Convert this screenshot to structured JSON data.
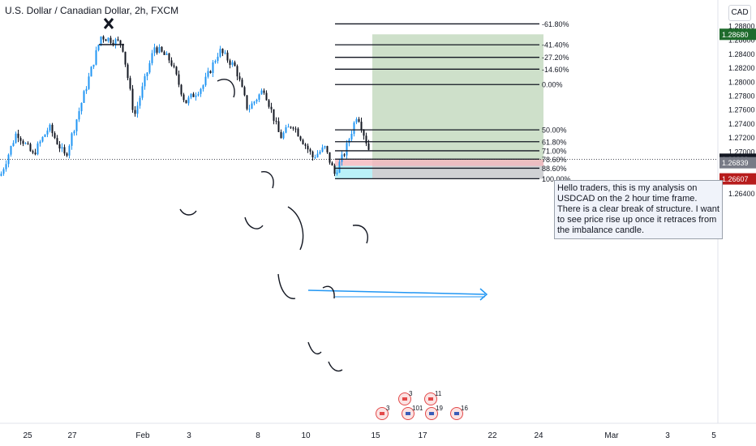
{
  "header": {
    "symbol_title": "U.S. Dollar / Canadian Dollar, 2h, FXCM",
    "currency_button": "CAD"
  },
  "colors": {
    "bull": "#2196f3",
    "bear": "#131722",
    "target_zone": "#a5c79f",
    "stop_zone": "#c4c6c9",
    "imbalance": "#b2f0f7",
    "imbalance_red": "#f4b7bd",
    "price_tag": "#131722",
    "tag_green": "#1f6b2c",
    "tag_red": "#b71c1c",
    "tag_gray": "#787b86"
  },
  "note": {
    "text": "Hello traders, this is my analysis on USDCAD on the 2 hour time frame.\nThere is a clear break of structure. I want to see price rise up once it retraces from the imbalance candle."
  },
  "chart_data": {
    "type": "candlestick",
    "symbol": "USDCAD",
    "timeframe": "2h",
    "y_axis": {
      "ticks": [
        "1.28800",
        "1.28600",
        "1.28400",
        "1.28200",
        "1.28000",
        "1.27800",
        "1.27600",
        "1.27400",
        "1.27200",
        "1.27000",
        "1.26800",
        "1.26600",
        "1.26400"
      ]
    },
    "x_axis": {
      "ticks": [
        "25",
        "27",
        "Feb",
        "3",
        "8",
        "10",
        "15",
        "17",
        "22",
        "24",
        "Mar",
        "3",
        "5"
      ]
    },
    "price_tags": [
      {
        "label": "1.28680",
        "value": 1.2868,
        "color": "#1f6b2c"
      },
      {
        "label": "1.26889",
        "value": 1.26889,
        "color": "#131722"
      },
      {
        "label": "1.26839",
        "value": 1.26839,
        "color": "#787b86"
      },
      {
        "label": "1.26607",
        "value": 1.26607,
        "color": "#b71c1c"
      }
    ],
    "fib_levels": [
      {
        "label": "-61.80%",
        "value": 1.2883
      },
      {
        "label": "-41.40%",
        "value": 1.2853
      },
      {
        "label": "-27.20%",
        "value": 1.2835
      },
      {
        "label": "-14.60%",
        "value": 1.2818
      },
      {
        "label": "0.00%",
        "value": 1.2796
      },
      {
        "label": "50.00%",
        "value": 1.2731
      },
      {
        "label": "61.80%",
        "value": 1.2714
      },
      {
        "label": "71.00%",
        "value": 1.2701
      },
      {
        "label": "78.60%",
        "value": 1.2689
      },
      {
        "label": "88.60%",
        "value": 1.2676
      },
      {
        "label": "100.00%",
        "value": 1.2661
      }
    ],
    "long_position": {
      "entry": 1.26839,
      "target": 1.2868,
      "stop": 1.26607
    },
    "calendar_events": [
      {
        "label": "3"
      },
      {
        "label": "11"
      },
      {
        "label": "3"
      },
      {
        "label": "101"
      },
      {
        "label": "19"
      },
      {
        "label": "16"
      }
    ]
  }
}
